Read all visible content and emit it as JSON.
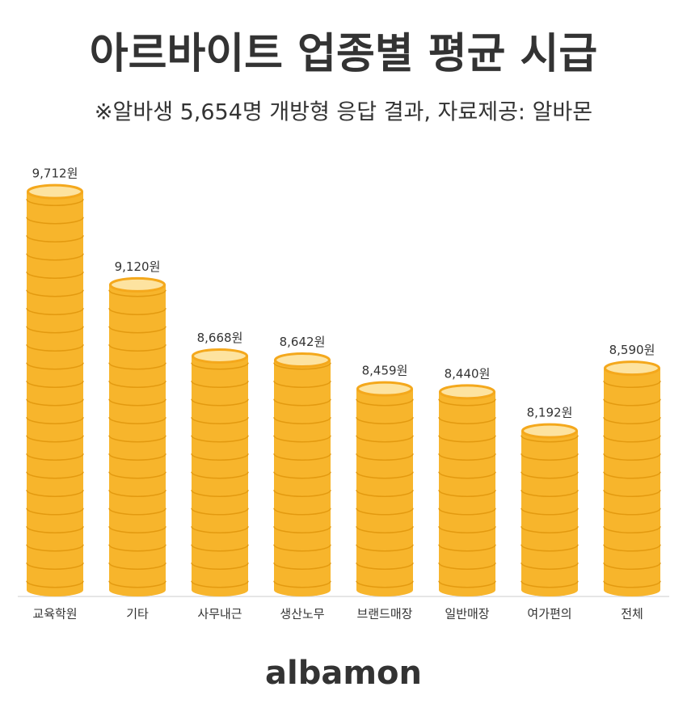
{
  "chart_data": {
    "type": "coin-bar",
    "title": "아르바이트 업종별 평균 시급",
    "subtitle": "※알바생 5,654명 개방형 응답 결과,  자료제공: 알바몬",
    "categories": [
      "교육학원",
      "기타",
      "사무내근",
      "생산노무",
      "브랜드매장",
      "일반매장",
      "여가편의",
      "전체"
    ],
    "values": [
      9712,
      9120,
      8668,
      8642,
      8459,
      8440,
      8192,
      8590
    ],
    "value_labels": [
      "9,712원",
      "9,120원",
      "8,668원",
      "8,642원",
      "8,459원",
      "8,440원",
      "8,192원",
      "8,590원"
    ],
    "color": "#f7b52c",
    "ylim": [
      7140,
      9800
    ],
    "brand": "albamon"
  }
}
